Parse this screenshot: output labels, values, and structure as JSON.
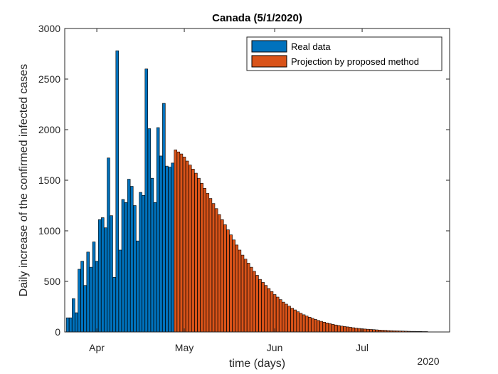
{
  "chart_data": {
    "type": "bar",
    "title": "Canada (5/1/2020)",
    "xlabel": "time (days)",
    "ylabel": "Daily increase of the confirmed infected cases",
    "ylim": [
      0,
      3000
    ],
    "yticks": [
      0,
      500,
      1000,
      1500,
      2000,
      2500,
      3000
    ],
    "x_start": "2020-03-21",
    "x_end": "2020-07-31",
    "x_ticks": [
      {
        "label": "Apr",
        "date": "2020-04-01"
      },
      {
        "label": "May",
        "date": "2020-05-01"
      },
      {
        "label": "Jun",
        "date": "2020-06-01"
      },
      {
        "label": "Jul",
        "date": "2020-07-01"
      }
    ],
    "x_secondary_label": "2020",
    "grid": false,
    "legend_position": "top-right",
    "colors": {
      "real": "#0072BD",
      "projection": "#D95319"
    },
    "series": [
      {
        "name": "Real data",
        "start_date": "2020-03-22",
        "values": [
          140,
          140,
          330,
          190,
          620,
          700,
          460,
          790,
          640,
          890,
          700,
          1110,
          1130,
          1030,
          1720,
          1150,
          540,
          2780,
          810,
          1310,
          1280,
          1510,
          1440,
          1250,
          900,
          1380,
          1350,
          2600,
          2010,
          1520,
          1280,
          2020,
          1740,
          2260,
          1640,
          1630,
          1670
        ]
      },
      {
        "name": "Projection by proposed method",
        "start_date": "2020-04-28",
        "values": [
          1800,
          1780,
          1760,
          1730,
          1690,
          1650,
          1610,
          1570,
          1520,
          1470,
          1420,
          1370,
          1320,
          1270,
          1220,
          1160,
          1110,
          1060,
          1010,
          960,
          910,
          860,
          810,
          760,
          720,
          680,
          640,
          600,
          560,
          520,
          490,
          460,
          430,
          400,
          370,
          345,
          320,
          295,
          275,
          255,
          235,
          218,
          200,
          185,
          170,
          158,
          146,
          135,
          124,
          114,
          105,
          97,
          89,
          82,
          75,
          69,
          64,
          58,
          54,
          50,
          46,
          42,
          38,
          35,
          32,
          29,
          27,
          25,
          23,
          21,
          19,
          17,
          16,
          14,
          13,
          12,
          11,
          10,
          9,
          8,
          7,
          6,
          6,
          5,
          5,
          4,
          4
        ]
      }
    ]
  }
}
